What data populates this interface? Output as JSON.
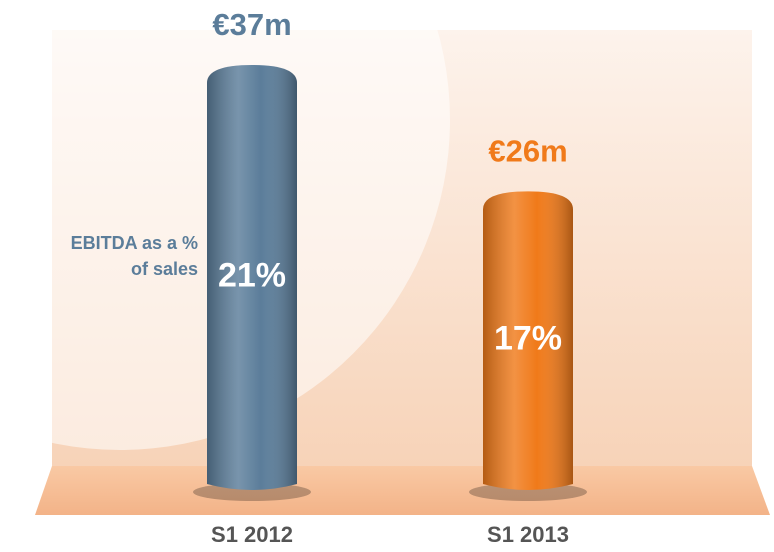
{
  "chart_data": {
    "type": "bar",
    "categories": [
      "S1 2012",
      "S1 2013"
    ],
    "values": [
      37,
      26
    ],
    "value_labels": [
      "€37m",
      "€26m"
    ],
    "colors": [
      "#5b7d9a",
      "#f07a1a"
    ],
    "margin": {
      "values": [
        21,
        17
      ],
      "value_labels": [
        "21%",
        "17%"
      ]
    },
    "annotation": "EBITDA as a % of sales"
  }
}
